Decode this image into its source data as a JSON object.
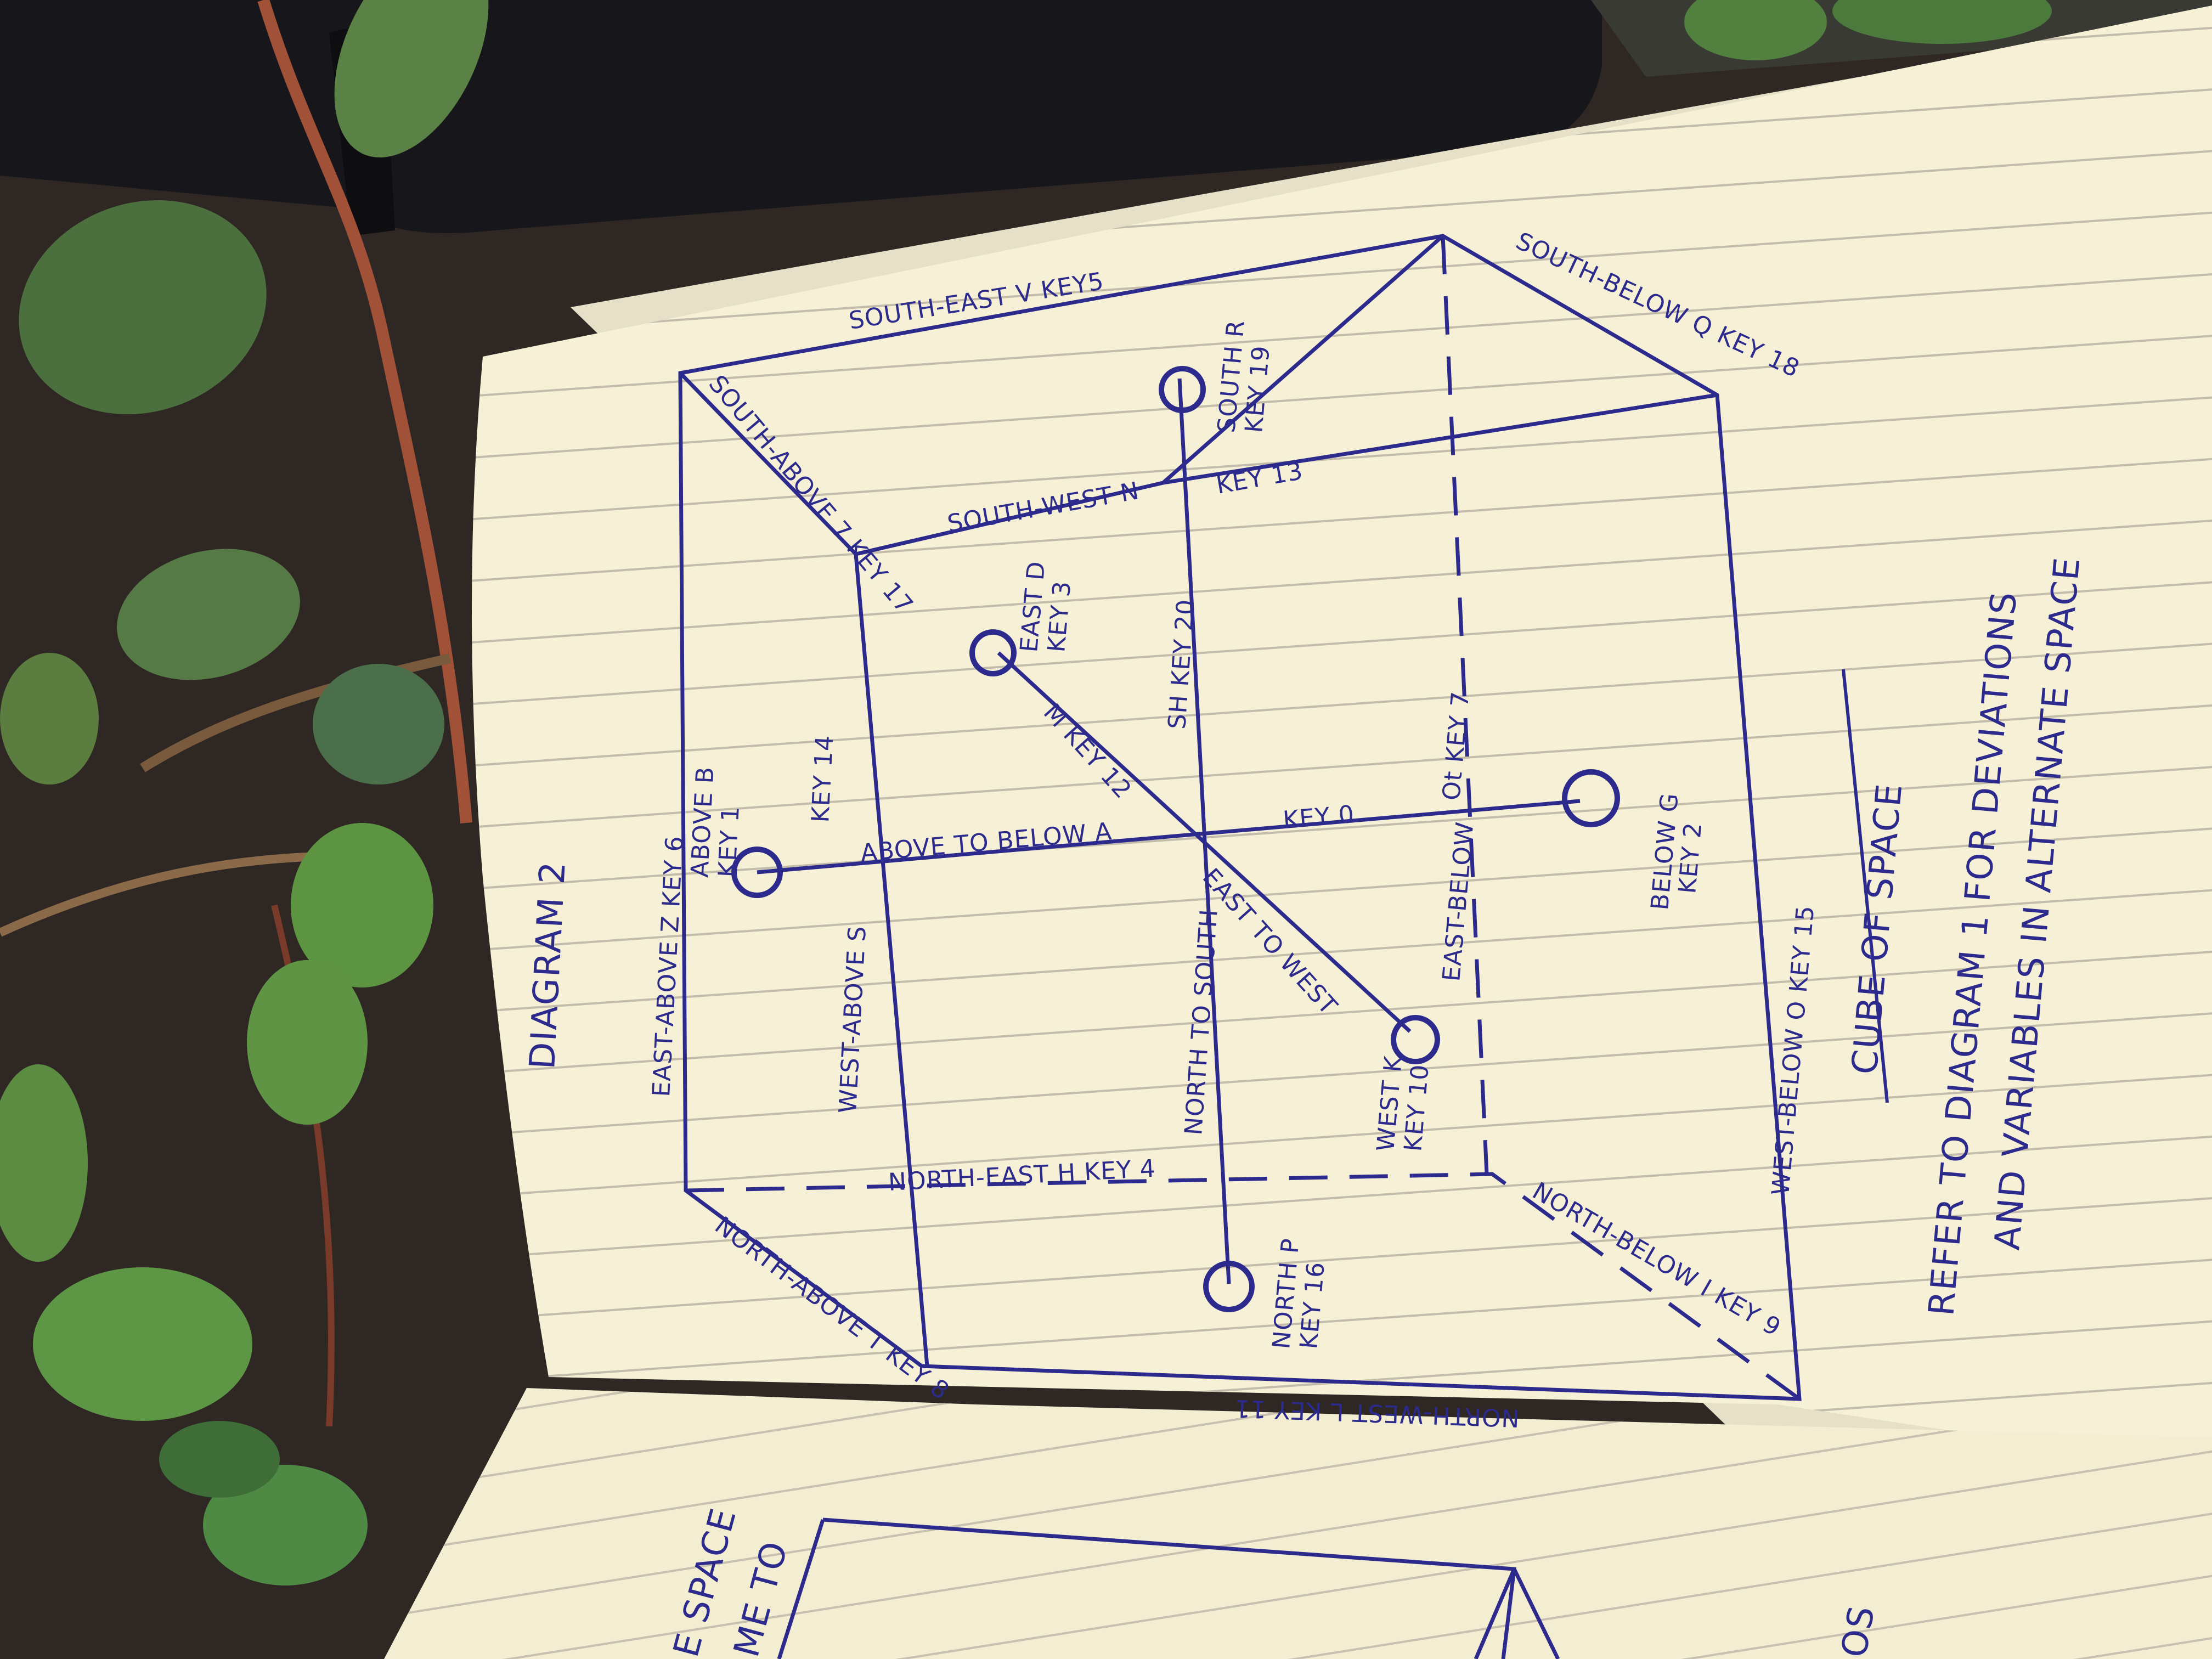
{
  "colors": {
    "ink": "#2c2a8c",
    "paper": "#f6f1d6",
    "rule": "#b9b3a3",
    "soil": "#2d2622",
    "leaf": "#4f7a3a",
    "stem": "#9a4a35",
    "planter": "#16161a"
  },
  "page": {
    "title": "DIAGRAM 2",
    "caption_title": "CUBE OF SPACE",
    "caption_line1": "REFER TO DIAGRAM 1 FOR DEVIATIONS",
    "caption_line2": "AND VARIABLES IN ALTERNATE SPACE"
  },
  "edges": {
    "south_east": "SOUTH-EAST V KEY5",
    "south_west": "SOUTH-WEST N",
    "key13": "KEY 13",
    "south_above": "SOUTH-ABOVE 7 KEY 17",
    "south_below": "SOUTH-BELOW Q KEY 18",
    "east_above": "EAST-ABOVE Z KEY 6",
    "west_above": "WEST-ABOVE S",
    "key14": "KEY 14",
    "north_east": "NORTH-EAST H KEY 4",
    "north_above": "NORTH-ABOVE T KEY 8",
    "north_west": "NORTH-WEST L KEY 11",
    "north_below": "NORTH-BELOW I KEY 9",
    "west_below": "WEST-BELOW O KEY 15",
    "east_below": "EAST-BELOW",
    "east_below_key": "Ot KEY 7"
  },
  "axes": {
    "above_to_below": "ABOVE TO BELOW A",
    "key0": "KEY 0",
    "north_to_south": "NORTH TO SOUTH",
    "sh_key20": "SH KEY 20",
    "east_to_west": "EAST TO WEST",
    "m_key12": "M KEY 12"
  },
  "points": {
    "above": "ABOVE B",
    "above_key": "KEY 1",
    "below": "BELOW G",
    "below_key": "KEY 2",
    "east": "EAST D",
    "east_key": "KEY 3",
    "west": "WEST K",
    "west_key": "KEY 10",
    "south": "SOUTH R",
    "south_key": "KEY 19",
    "north": "NORTH P",
    "north_key": "KEY 16"
  },
  "left_page": {
    "line1": "E SPACE",
    "line2": "ME TO",
    "right_fragment": "OS"
  }
}
